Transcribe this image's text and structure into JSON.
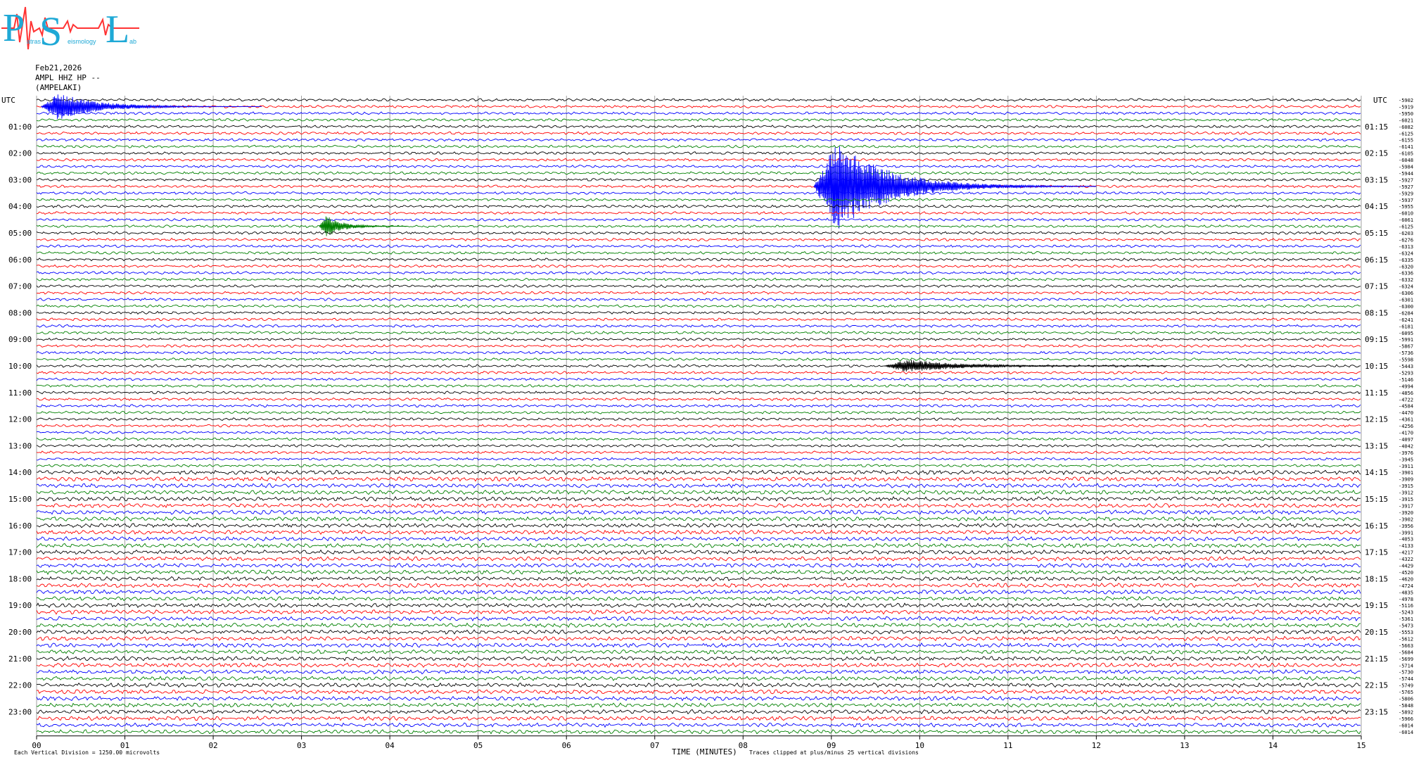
{
  "logo": {
    "letters": [
      "P",
      "S",
      "L"
    ],
    "words": [
      "atras",
      "eismology",
      "ab"
    ]
  },
  "header": {
    "date": "Feb21,2026",
    "station": "AMPL HHZ HP --",
    "site": "(AMPELAKI)"
  },
  "footer": {
    "scale_note": "Each Vertical Division = 1250.00 microvolts",
    "xlabel": "TIME (MINUTES)",
    "clip_note": "Traces clipped at plus/minus 25 vertical divisions"
  },
  "chart_data": {
    "type": "line",
    "xlabel": "TIME (MINUTES)",
    "xlim": [
      0,
      15
    ],
    "x_ticks": [
      "00",
      "01",
      "02",
      "03",
      "04",
      "05",
      "06",
      "07",
      "08",
      "09",
      "10",
      "11",
      "12",
      "13",
      "14",
      "15"
    ],
    "left_axis_title": "UTC",
    "right_axis_title": "UTC",
    "left_hour_labels": [
      "01:00",
      "02:00",
      "03:00",
      "04:00",
      "05:00",
      "06:00",
      "07:00",
      "08:00",
      "09:00",
      "10:00",
      "11:00",
      "12:00",
      "13:00",
      "14:00",
      "15:00",
      "16:00",
      "17:00",
      "18:00",
      "19:00",
      "20:00",
      "21:00",
      "22:00",
      "23:00"
    ],
    "right_hour_labels": [
      "01:15",
      "02:15",
      "03:15",
      "04:15",
      "05:15",
      "06:15",
      "07:15",
      "08:15",
      "09:15",
      "10:15",
      "11:15",
      "12:15",
      "13:15",
      "14:15",
      "15:15",
      "16:15",
      "17:15",
      "18:15",
      "19:15",
      "20:15",
      "21:15",
      "22:15",
      "23:15"
    ],
    "trace_minutes": 15,
    "traces_per_hour": 4,
    "trace_count": 96,
    "trace_colors": [
      "#000000",
      "#ff0000",
      "#0000ff",
      "#008000"
    ],
    "trace_offsets": [
      -5902,
      -5919,
      -5950,
      -6021,
      -6082,
      -6125,
      -6155,
      -6141,
      -6105,
      -6048,
      -5984,
      -5944,
      -5927,
      -5927,
      -5929,
      -5937,
      -5955,
      -6010,
      -6061,
      -6125,
      -6203,
      -6276,
      -6313,
      -6324,
      -6335,
      -6320,
      -6336,
      -6332,
      -6324,
      -6306,
      -6301,
      -6300,
      -6284,
      -6241,
      -6181,
      -6095,
      -5991,
      -5867,
      -5736,
      -5598,
      -5443,
      -5293,
      -5146,
      -4994,
      -4856,
      -4722,
      -4584,
      -4470,
      -4361,
      -4256,
      -4170,
      -4097,
      -4042,
      -3976,
      -3945,
      -3911,
      -3901,
      -3909,
      -3915,
      -3912,
      -3915,
      -3917,
      -3920,
      -3902,
      -3956,
      -3991,
      -4053,
      -4133,
      -4217,
      -4322,
      -4429,
      -4520,
      -4620,
      -4724,
      -4835,
      -4978,
      -5116,
      -5243,
      -5361,
      -5473,
      -5553,
      -5612,
      -5663,
      -5684,
      -5699,
      -5714,
      -5730,
      -5744,
      -5749,
      -5765,
      -5806,
      -5848,
      -5892,
      -5966,
      -6014,
      -6014
    ],
    "events": [
      {
        "trace": 1,
        "start_min": 0.05,
        "duration_min": 2.5,
        "peak_div": 12,
        "color": "#0000ff"
      },
      {
        "trace": 13,
        "start_min": 8.8,
        "duration_min": 3.2,
        "peak_div": 40,
        "color": "#0000ff"
      },
      {
        "trace": 19,
        "start_min": 3.2,
        "duration_min": 1.0,
        "peak_div": 10,
        "color": "#008000"
      },
      {
        "trace": 40,
        "start_min": 9.6,
        "duration_min": 3.2,
        "peak_div": 6,
        "color": "#000000"
      }
    ],
    "scale_microvolts_per_division": 1250,
    "clip_divisions": 25
  }
}
